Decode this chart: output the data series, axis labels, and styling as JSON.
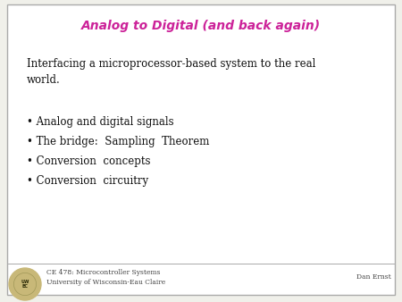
{
  "title": "Analog to Digital (and back again)",
  "title_color": "#cc2299",
  "title_fontsize": 10,
  "background_color": "#f0f0ea",
  "slide_bg": "#ffffff",
  "border_color": "#aaaaaa",
  "intro_text": "Interfacing a microprocessor-based system to the real\nworld.",
  "bullet_points": [
    "Analog and digital signals",
    "The bridge:  Sampling  Theorem",
    "Conversion  concepts",
    "Conversion  circuitry"
  ],
  "text_color": "#111111",
  "bullet_fontsize": 8.5,
  "intro_fontsize": 8.5,
  "footer_left_line1": "CE 478: Microcontroller Systems",
  "footer_left_line2": "University of Wisconsin-Eau Claire",
  "footer_right": "Dan Ernst",
  "footer_fontsize": 5.5,
  "footer_color": "#444444"
}
